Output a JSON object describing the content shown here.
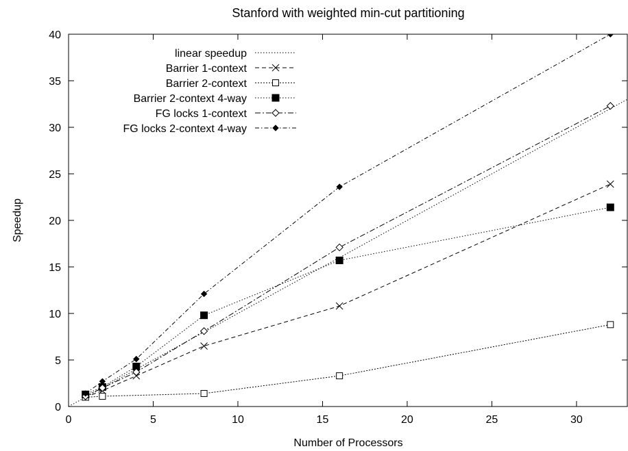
{
  "chart_data": {
    "type": "line",
    "title": "Stanford with weighted min-cut partitioning",
    "xlabel": "Number of Processors",
    "ylabel": "Speedup",
    "xlim": [
      0,
      33
    ],
    "ylim": [
      0,
      40
    ],
    "xticks": [
      0,
      5,
      10,
      15,
      20,
      25,
      30
    ],
    "yticks": [
      0,
      5,
      10,
      15,
      20,
      25,
      30,
      35,
      40
    ],
    "grid": false,
    "legend_position": "top-left",
    "series": [
      {
        "name": "linear speedup",
        "line": "dotted",
        "marker": "none",
        "x": [
          0,
          33
        ],
        "y": [
          0,
          33
        ]
      },
      {
        "name": "Barrier 1-context",
        "line": "dashed",
        "marker": "cross",
        "x": [
          1,
          2,
          4,
          8,
          16,
          32
        ],
        "y": [
          1.0,
          1.7,
          3.3,
          6.5,
          10.8,
          23.9
        ]
      },
      {
        "name": "Barrier 2-context",
        "line": "dotted-fine",
        "marker": "open-square",
        "x": [
          1,
          2,
          4,
          8,
          16,
          32
        ],
        "y": [
          1.0,
          1.1,
          null,
          1.4,
          3.3,
          8.8
        ]
      },
      {
        "name": "Barrier 2-context 4-way",
        "line": "dotted",
        "marker": "filled-square",
        "x": [
          1,
          2,
          4,
          8,
          16,
          32
        ],
        "y": [
          1.3,
          2.1,
          4.3,
          9.8,
          15.7,
          21.4
        ]
      },
      {
        "name": "FG locks 1-context",
        "line": "dashdot",
        "marker": "open-diamond",
        "x": [
          1,
          2,
          4,
          8,
          16,
          32
        ],
        "y": [
          1.1,
          2.0,
          3.7,
          8.1,
          17.1,
          32.3
        ]
      },
      {
        "name": "FG locks 2-context 4-way",
        "line": "dashdot-fine",
        "marker": "filled-diamond",
        "x": [
          1,
          2,
          4,
          8,
          16,
          32
        ],
        "y": [
          1.4,
          2.7,
          5.1,
          12.1,
          23.6,
          40.0
        ]
      }
    ]
  }
}
